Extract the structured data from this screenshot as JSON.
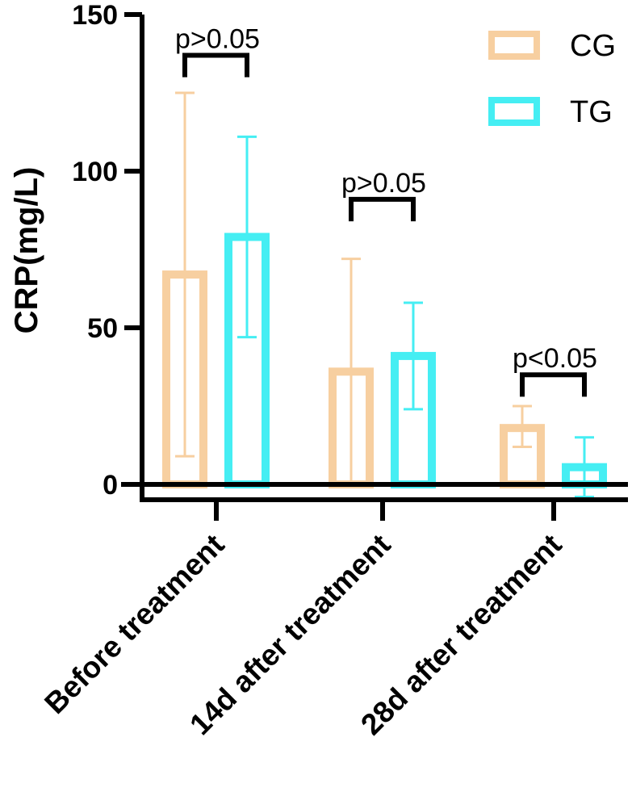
{
  "chart_data": {
    "type": "bar",
    "title": "",
    "xlabel": "",
    "ylabel": "CRP(mg/L)",
    "ylim": [
      0,
      150
    ],
    "yticks": [
      0,
      50,
      100,
      150
    ],
    "categories": [
      "Before treatment",
      "14d after treatment",
      "28d after treatment"
    ],
    "series": [
      {
        "name": "CG",
        "color": "#F7CFA0",
        "values": [
          67,
          36,
          18
        ],
        "error_low": [
          9,
          0,
          12
        ],
        "error_high": [
          125,
          72,
          25
        ]
      },
      {
        "name": "TG",
        "color": "#45EEF3",
        "values": [
          79,
          41,
          5.5
        ],
        "error_low": [
          47,
          24,
          -4
        ],
        "error_high": [
          111,
          58,
          15
        ]
      }
    ],
    "legend": {
      "position": "top-right",
      "style": "hollow"
    },
    "annotations": [
      {
        "category": "Before treatment",
        "text": "p>0.05",
        "bracket_top": 137,
        "bracket_bottom": 130
      },
      {
        "category": "14d after treatment",
        "text": "p>0.05",
        "bracket_top": 91,
        "bracket_bottom": 84
      },
      {
        "category": "28d after treatment",
        "text": "p<0.05",
        "bracket_top": 35,
        "bracket_bottom": 28
      }
    ]
  }
}
